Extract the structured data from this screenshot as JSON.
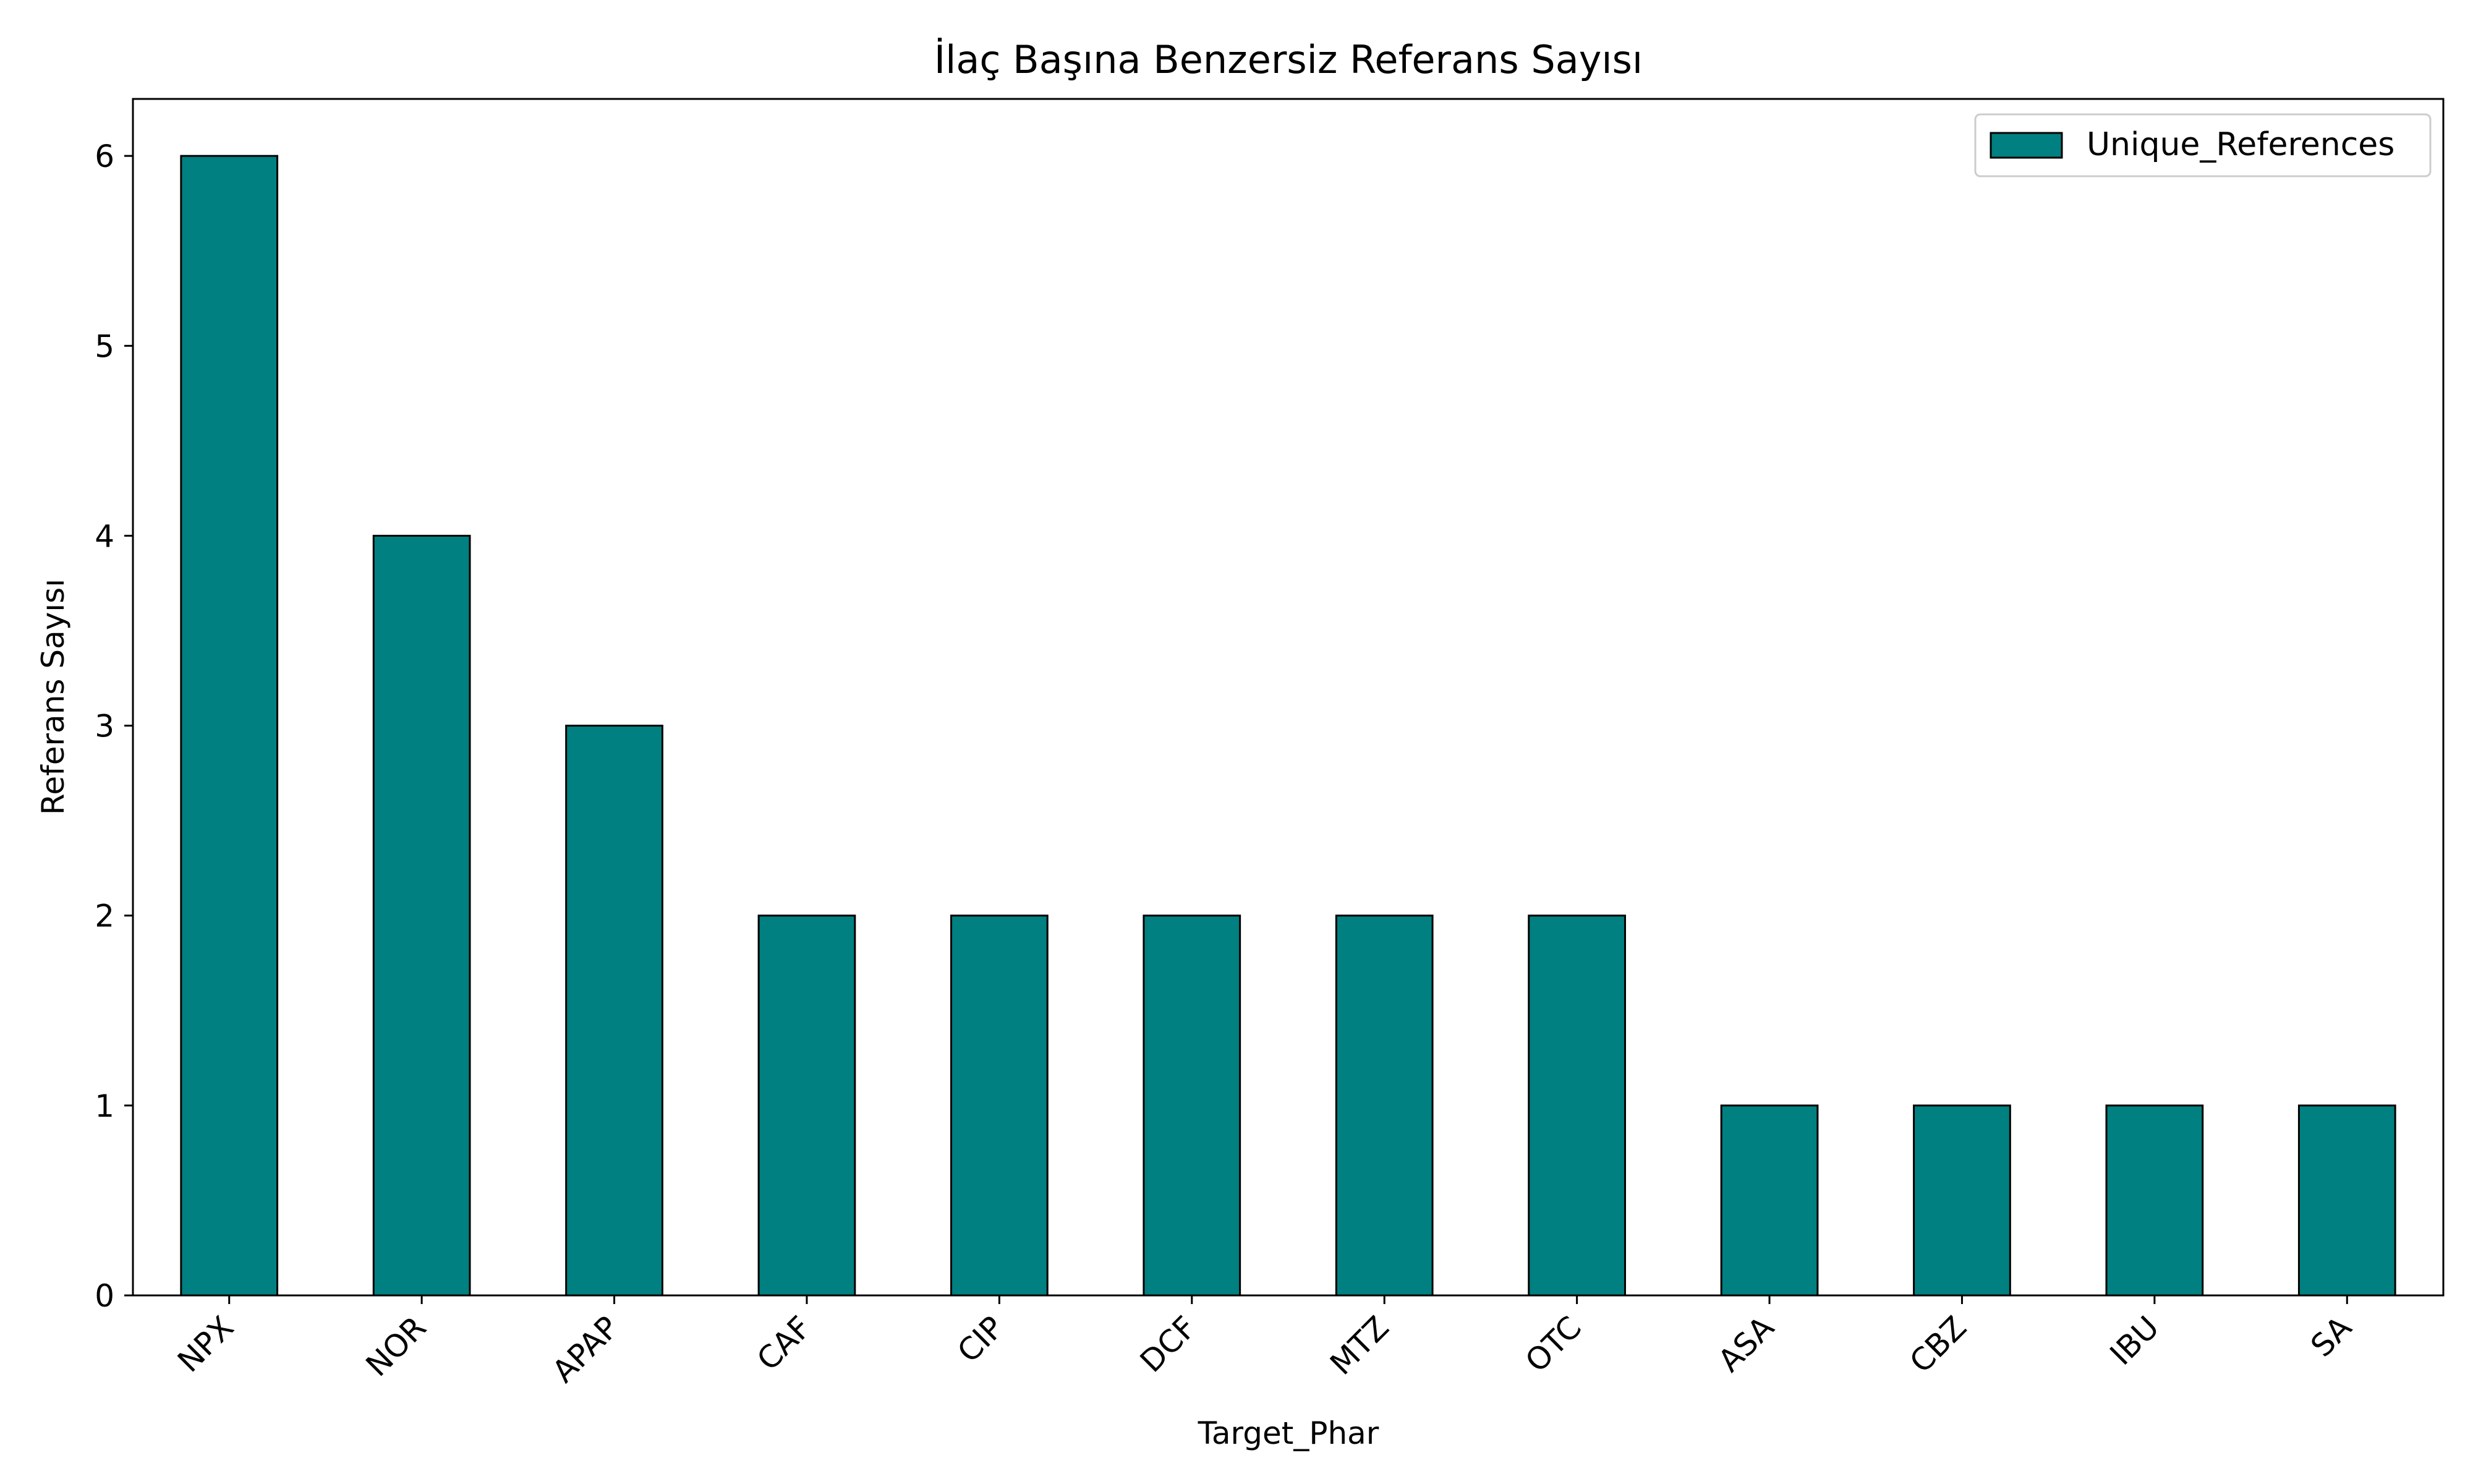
{
  "chart_data": {
    "type": "bar",
    "title": "İlaç Başına Benzersiz Referans Sayısı",
    "xlabel": "Target_Phar",
    "ylabel": "Referans Sayısı",
    "categories": [
      "NPX",
      "NOR",
      "APAP",
      "CAF",
      "CIP",
      "DCF",
      "MTZ",
      "OTC",
      "ASA",
      "CBZ",
      "IBU",
      "SA"
    ],
    "series": [
      {
        "name": "Unique_References",
        "values": [
          6,
          4,
          3,
          2,
          2,
          2,
          2,
          2,
          1,
          1,
          1,
          1
        ]
      }
    ],
    "ylim": [
      0,
      6.3
    ],
    "yticks": [
      0,
      1,
      2,
      3,
      4,
      5,
      6
    ],
    "grid": false,
    "legend_position": "top-right",
    "colors": {
      "bar_fill": "#008080",
      "bar_edge": "#000000"
    }
  }
}
